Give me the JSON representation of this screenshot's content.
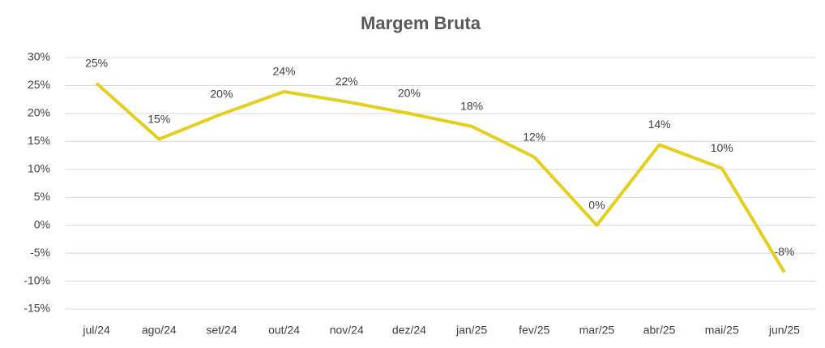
{
  "chart_data": {
    "type": "line",
    "title": "Margem Bruta",
    "categories": [
      "jul/24",
      "ago/24",
      "set/24",
      "out/24",
      "nov/24",
      "dez/24",
      "jan/25",
      "fev/25",
      "mar/25",
      "abr/25",
      "mai/25",
      "jun/25"
    ],
    "series": [
      {
        "name": "Margem Bruta",
        "color": "#e6cf1c",
        "values": [
          25.4,
          15.4,
          19.9,
          23.9,
          22.1,
          20.0,
          17.7,
          12.2,
          0,
          14.4,
          10.2,
          -8.4
        ],
        "value_labels": [
          "25%",
          "15%",
          "20%",
          "24%",
          "22%",
          "20%",
          "18%",
          "12%",
          "0%",
          "14%",
          "10%",
          "-8%"
        ]
      }
    ],
    "ylim": [
      -15,
      30
    ],
    "yticks": [
      {
        "value": -15,
        "label": "-15%"
      },
      {
        "value": -10,
        "label": "-10%"
      },
      {
        "value": -5,
        "label": "-5%"
      },
      {
        "value": 0,
        "label": "0%"
      },
      {
        "value": 5,
        "label": "5%"
      },
      {
        "value": 10,
        "label": "10%"
      },
      {
        "value": 15,
        "label": "15%"
      },
      {
        "value": 20,
        "label": "20%"
      },
      {
        "value": 25,
        "label": "25%"
      },
      {
        "value": 30,
        "label": "30%"
      }
    ],
    "grid": true
  }
}
